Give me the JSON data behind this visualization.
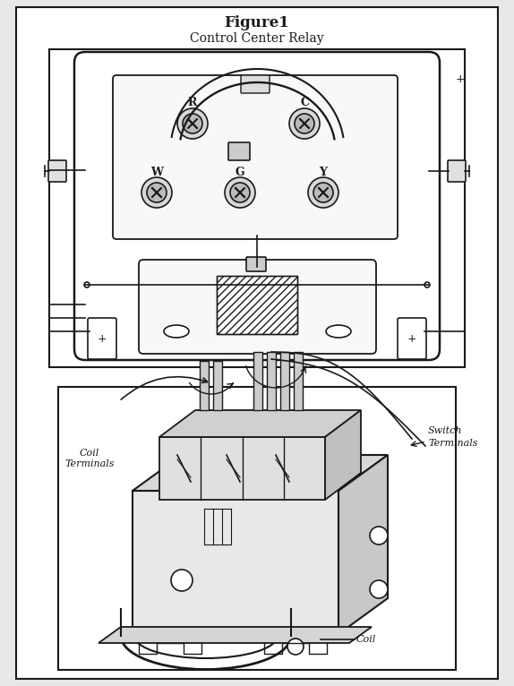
{
  "title_bold": "Figure1",
  "title_sub": "Control Center Relay",
  "bg_color": "#e8e8e8",
  "inner_bg": "#ffffff",
  "line_color": "#1a1a1a",
  "label_coil_terminals": "Coil\nTerminals",
  "label_switch_terminals": "Switch\nTerminals",
  "label_coil": "Coil",
  "fig_width": 5.74,
  "fig_height": 7.66,
  "dpi": 100
}
